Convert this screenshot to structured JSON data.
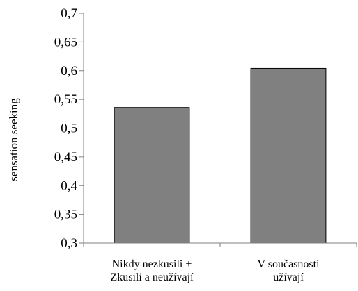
{
  "chart_data": {
    "type": "bar",
    "title": "",
    "xlabel": "",
    "ylabel": "sensation seeking",
    "ylim": [
      0.3,
      0.7
    ],
    "yticks": [
      "0,3",
      "0,35",
      "0,4",
      "0,45",
      "0,5",
      "0,55",
      "0,6",
      "0,65",
      "0,7"
    ],
    "categories": [
      [
        "Nikdy nezkusili +",
        "Zkusili a neužívají"
      ],
      [
        "V současnosti",
        "užívají"
      ]
    ],
    "values": [
      0.536,
      0.604
    ],
    "grid": false,
    "legend": "none",
    "colors": {
      "bar_fill": "#808080",
      "bar_stroke": "#000000",
      "axis": "#808080"
    }
  }
}
